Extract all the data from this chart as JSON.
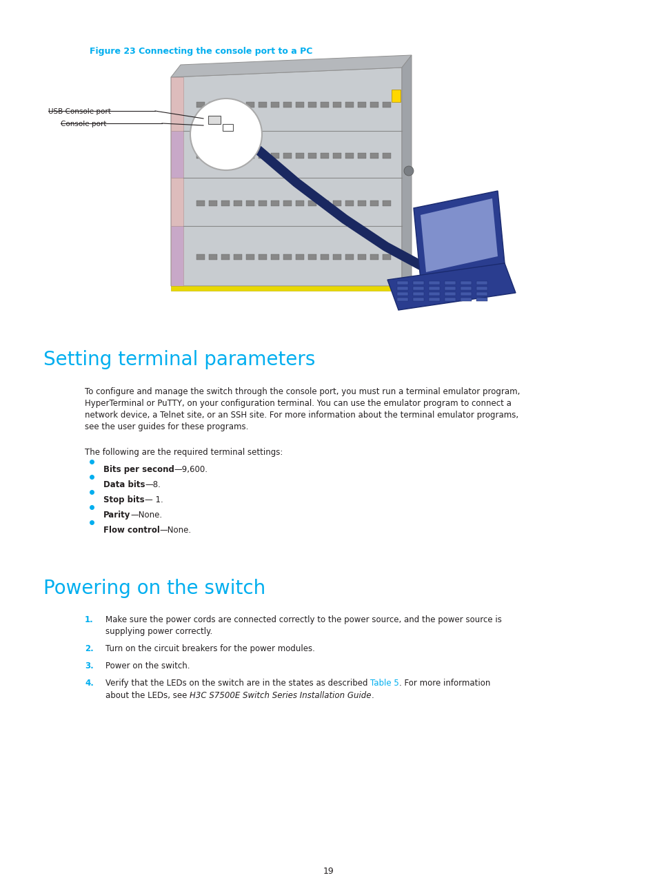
{
  "figure_caption": "Figure 23 Connecting the console port to a PC",
  "figure_caption_color": "#00AEEF",
  "label_usb": "USB Console port",
  "label_console": "Console port",
  "section1_title": "Setting terminal parameters",
  "section1_color": "#00AEEF",
  "para_lines": [
    "To configure and manage the switch through the console port, you must run a terminal emulator program,",
    "HyperTerminal or PuTTY, on your configuration terminal. You can use the emulator program to connect a",
    "network device, a Telnet site, or an SSH site. For more information about the terminal emulator programs,",
    "see the user guides for these programs."
  ],
  "section1_intro": "The following are the required terminal settings:",
  "bullet_items": [
    {
      "bold": "Bits per second",
      "rest": "—9,600."
    },
    {
      "bold": "Data bits",
      "rest": "—8."
    },
    {
      "bold": "Stop bits",
      "rest": "— 1."
    },
    {
      "bold": "Parity",
      "rest": "—None."
    },
    {
      "bold": "Flow control",
      "rest": "—None."
    }
  ],
  "section2_title": "Powering on the switch",
  "section2_color": "#00AEEF",
  "num_items": [
    "Make sure the power cords are connected correctly to the power source, and the power source is\nsupplying power correctly.",
    "Turn on the circuit breakers for the power modules.",
    "Power on the switch."
  ],
  "num_item4_pre": "Verify that the LEDs on the switch are in the states as described ",
  "num_item4_link": "Table 5",
  "num_item4_mid": ". For more information",
  "num_item4_line2_pre": "about the LEDs, see ",
  "num_item4_italic": "H3C S7500E Switch Series Installation Guide",
  "num_item4_end": ".",
  "cyan_color": "#00AEEF",
  "page_number": "19",
  "bg_color": "#ffffff",
  "text_color": "#231f20",
  "body_fontsize": 8.5,
  "title_fontsize": 20,
  "caption_fontsize": 9
}
